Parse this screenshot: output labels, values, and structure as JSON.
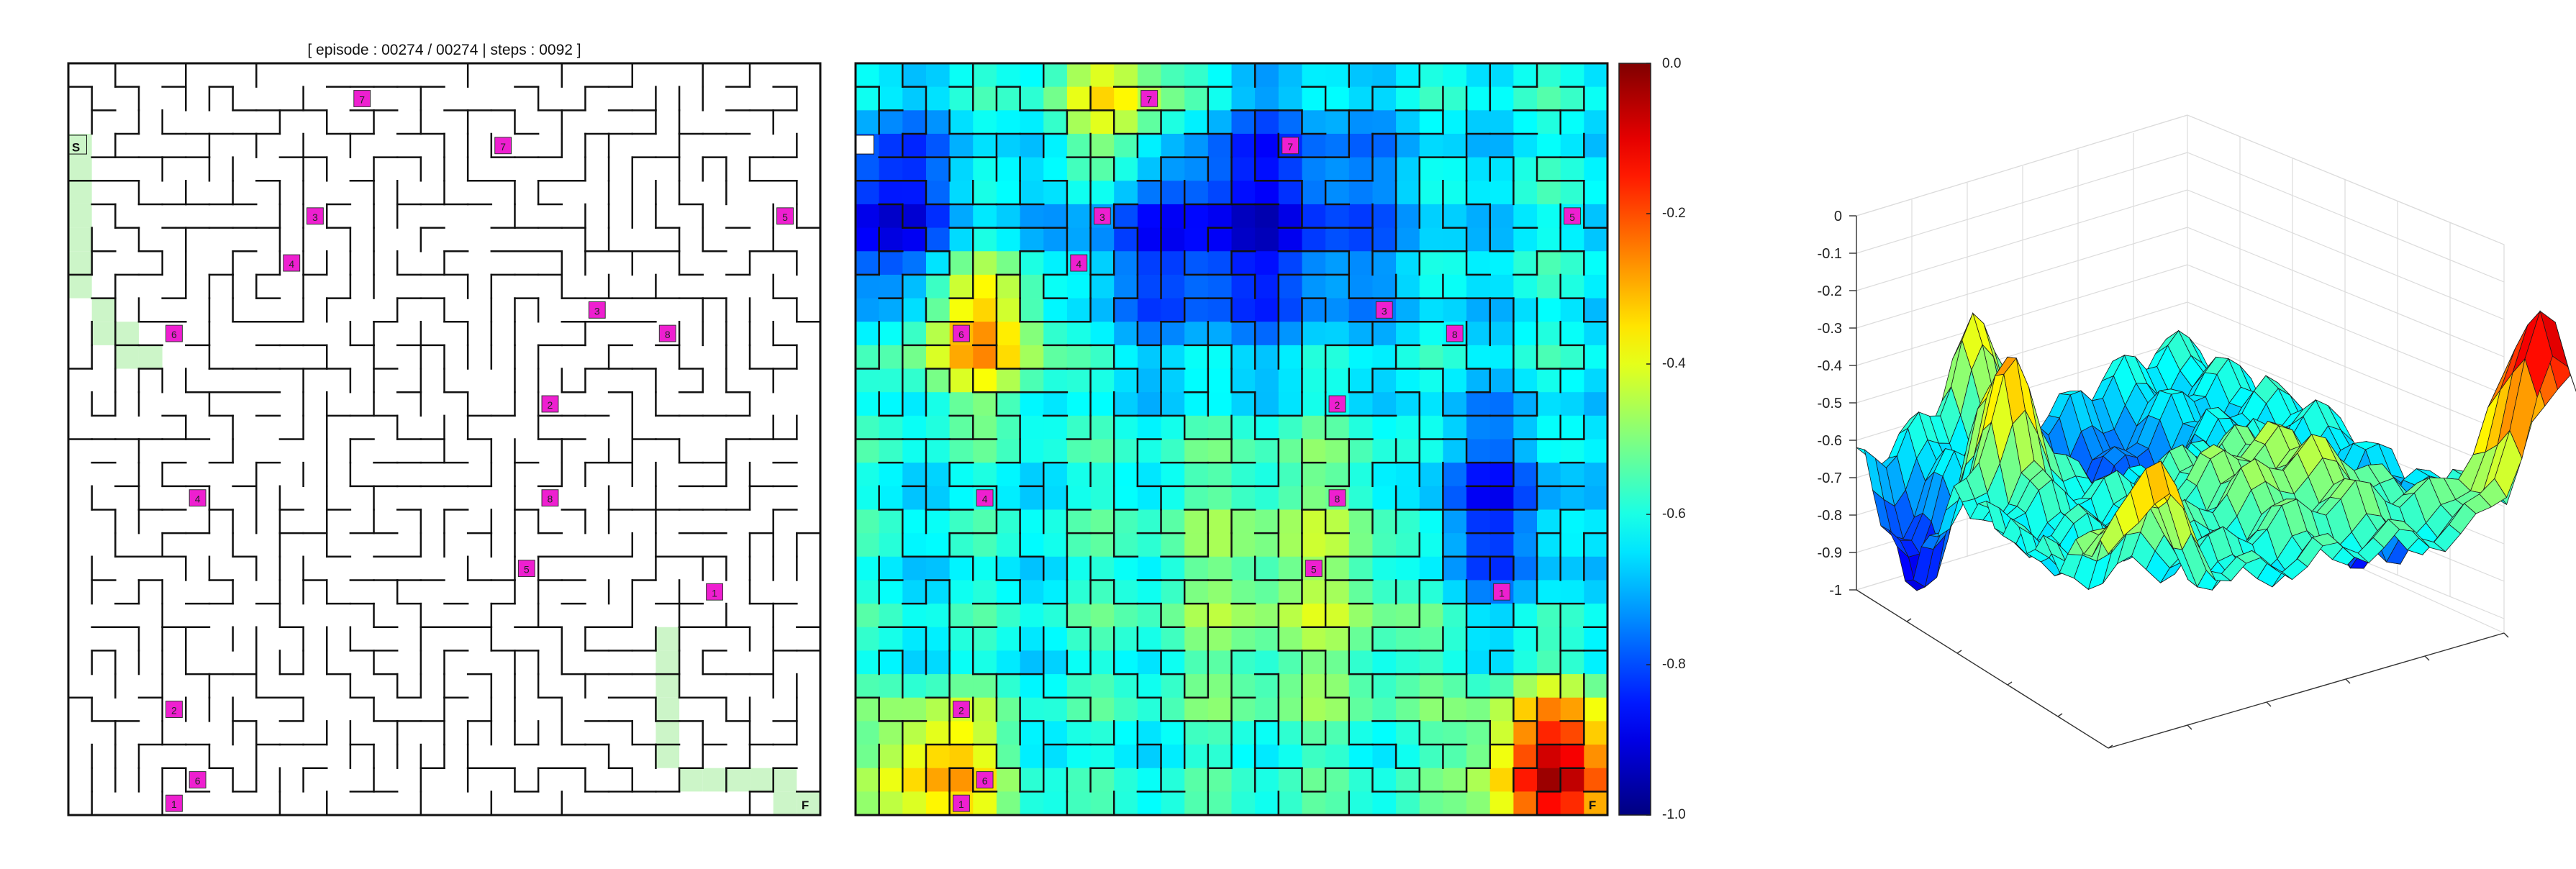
{
  "status": {
    "text": "[ episode : 00274 / 00274 | steps : 0092 ]"
  },
  "maze": {
    "rows": 32,
    "cols": 32,
    "seed": 274,
    "start_label": "S",
    "finish_label": "F",
    "checkpoints": [
      {
        "label": "7",
        "row": 1,
        "col": 12
      },
      {
        "label": "7",
        "row": 3,
        "col": 18
      },
      {
        "label": "3",
        "row": 6,
        "col": 10
      },
      {
        "label": "5",
        "row": 6,
        "col": 30
      },
      {
        "label": "4",
        "row": 8,
        "col": 9
      },
      {
        "label": "6",
        "row": 11,
        "col": 4
      },
      {
        "label": "3",
        "row": 10,
        "col": 22
      },
      {
        "label": "8",
        "row": 11,
        "col": 25
      },
      {
        "label": "2",
        "row": 14,
        "col": 20
      },
      {
        "label": "8",
        "row": 18,
        "col": 20
      },
      {
        "label": "4",
        "row": 18,
        "col": 5
      },
      {
        "label": "5",
        "row": 21,
        "col": 19
      },
      {
        "label": "1",
        "row": 22,
        "col": 27
      },
      {
        "label": "2",
        "row": 27,
        "col": 4
      },
      {
        "label": "1",
        "row": 31,
        "col": 4
      },
      {
        "label": "6",
        "row": 30,
        "col": 5
      }
    ],
    "path_color": "#ccf5c8"
  },
  "colorbar": {
    "ticks": [
      "0.0",
      "-0.2",
      "-0.4",
      "-0.6",
      "-0.8",
      "-1.0"
    ],
    "min": -1.0,
    "max": 0.0
  },
  "surface": {
    "z_ticks": [
      "0",
      "-0.1",
      "-0.2",
      "-0.3",
      "-0.4",
      "-0.5",
      "-0.6",
      "-0.7",
      "-0.8",
      "-0.9",
      "-1"
    ]
  },
  "colors": {
    "checkpoint": "#ee1fd0",
    "wall": "#111111"
  }
}
